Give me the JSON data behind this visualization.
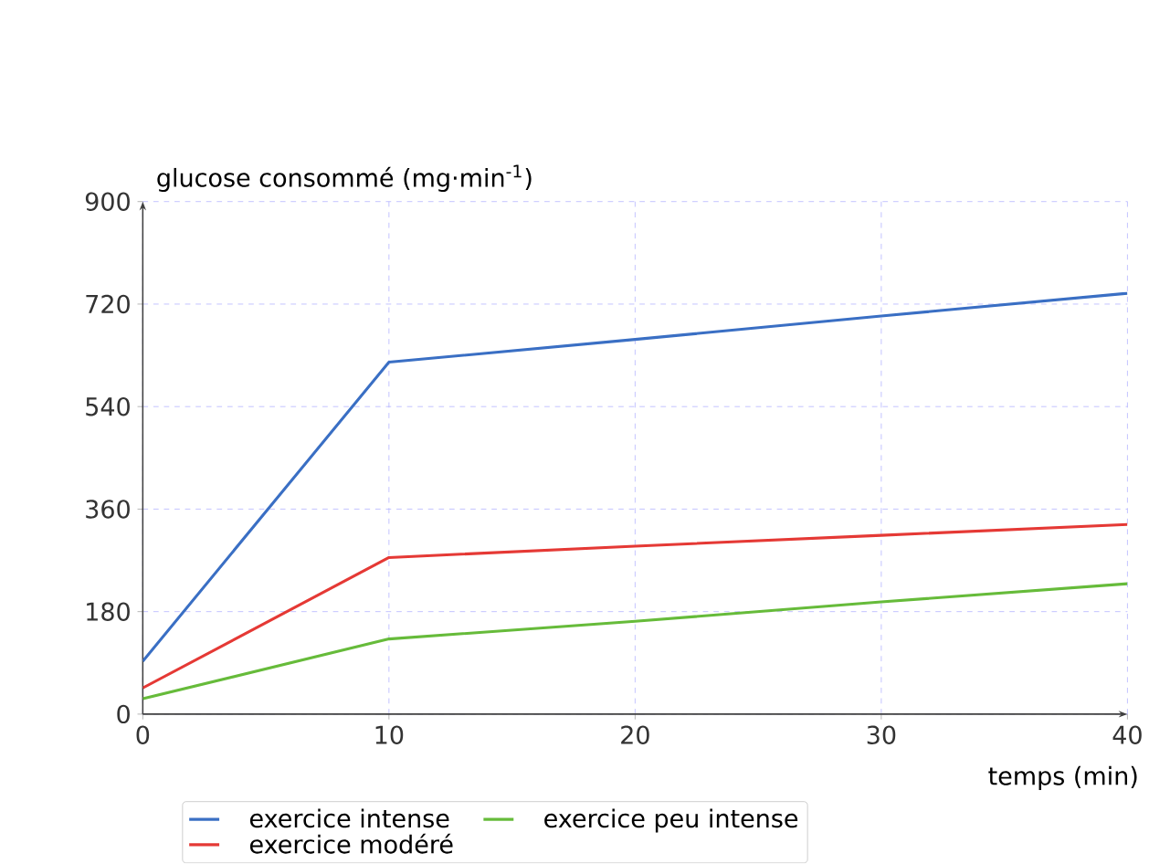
{
  "chart_data": {
    "type": "line",
    "xlabel": "temps (min)",
    "ylabel": "glucose consommé (mg·min$^{-1}$)",
    "x": [
      0,
      10,
      20,
      30,
      40
    ],
    "series": [
      {
        "name": "exercice intense",
        "color": "#3a6fc4",
        "values": [
          93,
          618,
          658,
          699,
          739
        ]
      },
      {
        "name": "exercice modéré",
        "color": "#e53935",
        "values": [
          46,
          275,
          295,
          314,
          333
        ]
      },
      {
        "name": "exercice peu intense",
        "color": "#66bb3a",
        "values": [
          27,
          132,
          163,
          197,
          229
        ]
      }
    ],
    "xlim": [
      0,
      40
    ],
    "ylim": [
      0,
      900
    ],
    "xticks": [
      0,
      10,
      20,
      30,
      40
    ],
    "yticks": [
      0,
      180,
      360,
      540,
      720,
      900
    ],
    "grid": true,
    "legend": "bottom",
    "line_style": "solid",
    "marker": "none"
  }
}
